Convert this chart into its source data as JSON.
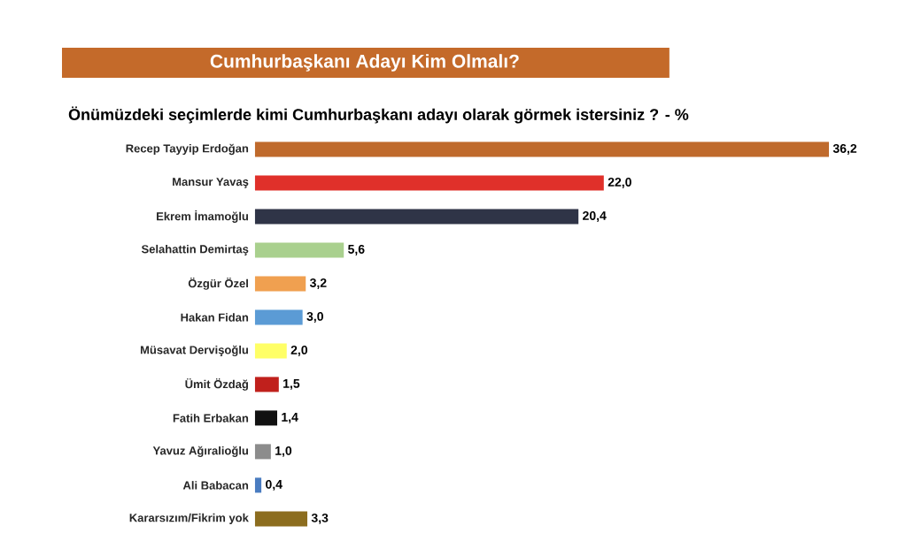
{
  "chart_data": {
    "type": "bar",
    "orientation": "horizontal",
    "title": "Cumhurbaşkanı Adayı Kim Olmalı?",
    "subtitle": "Önümüzdeki seçimlerde kimi Cumhurbaşkanı adayı olarak görmek istersiniz ? - %",
    "categories": [
      "Recep Tayyip Erdoğan",
      "Mansur Yavaş",
      "Ekrem İmamoğlu",
      "Selahattin Demirtaş",
      "Özgür Özel",
      "Hakan Fidan",
      "Müsavat Dervişoğlu",
      "Ümit Özdağ",
      "Fatih Erbakan",
      "Yavuz Ağıralioğlu",
      "Ali Babacan",
      "Kararsızım/Fikrim yok"
    ],
    "values": [
      36.2,
      22.0,
      20.4,
      5.6,
      3.2,
      3.0,
      2.0,
      1.5,
      1.4,
      1.0,
      0.4,
      3.3
    ],
    "value_labels": [
      "36,2",
      "22,0",
      "20,4",
      "5,6",
      "3,2",
      "3,0",
      "2,0",
      "1,5",
      "1,4",
      "1,0",
      "0,4",
      "3,3"
    ],
    "colors": [
      "#bf6a2c",
      "#e0302a",
      "#2f3447",
      "#a9d08e",
      "#f0a050",
      "#5b9bd5",
      "#ffff66",
      "#c0201c",
      "#111111",
      "#8c8c8c",
      "#4a7cc0",
      "#8c6d1f"
    ]
  }
}
